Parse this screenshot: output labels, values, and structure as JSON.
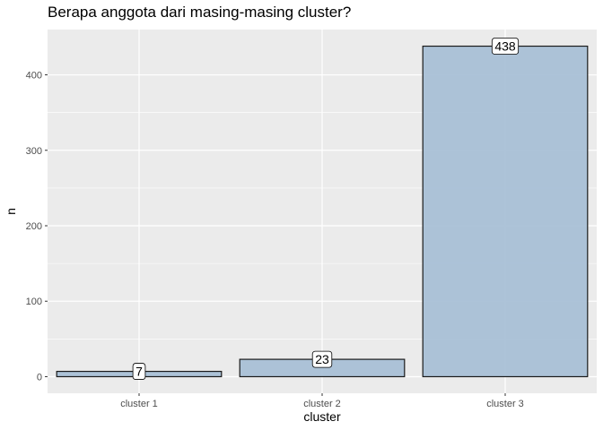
{
  "chart_data": {
    "type": "bar",
    "title": "Berapa anggota dari masing-masing cluster?",
    "xlabel": "cluster",
    "ylabel": "n",
    "categories": [
      "cluster 1",
      "cluster 2",
      "cluster 3"
    ],
    "values": [
      7,
      23,
      438
    ],
    "data_labels": [
      "7",
      "23",
      "438"
    ],
    "ylim": [
      -22,
      460
    ],
    "yticks": [
      0,
      100,
      200,
      300,
      400
    ],
    "grid": true,
    "legend": "none",
    "colors": {
      "panel": "#EBEBEB",
      "gridline": "#FFFFFF",
      "bar_fill": "#A9C0D6",
      "bar_stroke": "#1A1A1A",
      "tick_text": "#4D4D4D"
    }
  }
}
